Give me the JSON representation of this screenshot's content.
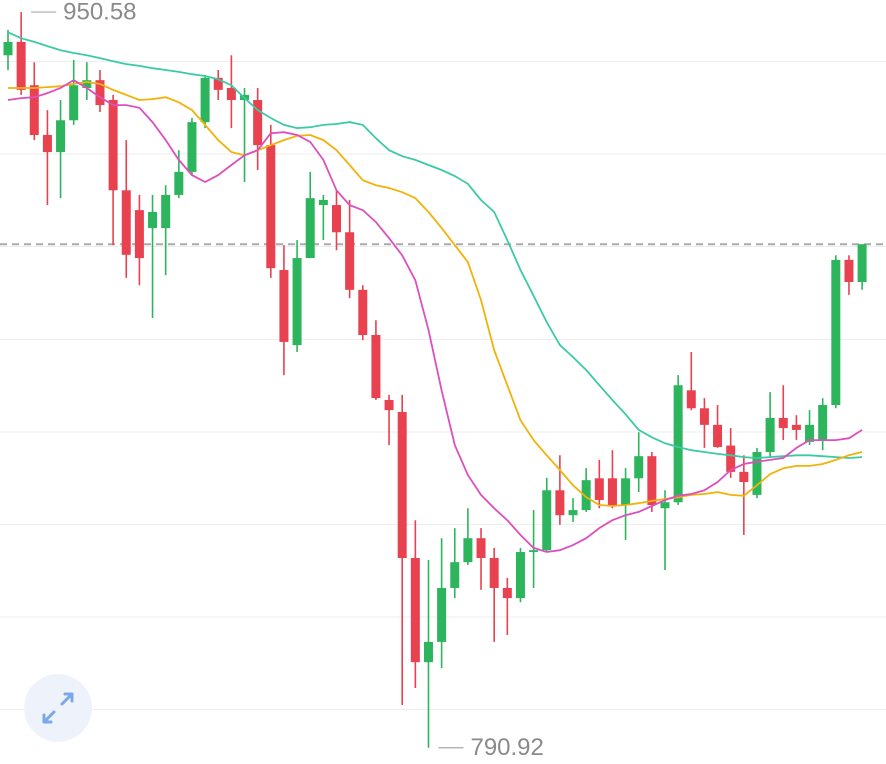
{
  "chart_data": {
    "type": "candlestick",
    "ylim": [
      787.4,
      953.2
    ],
    "up_color": "#2db55d",
    "down_color": "#e8414f",
    "open": [
      941.2,
      944.1,
      934.7,
      923.9,
      920.2,
      927.1,
      934.1,
      935.8,
      931.5,
      911.9,
      907.6,
      903.7,
      903.7,
      910.9,
      915.9,
      926.7,
      936.3,
      934.1,
      931.5,
      931.5,
      921.7,
      894.6,
      878.3,
      897.2,
      908.7,
      908.7,
      902.8,
      890.3,
      880.5,
      866.4,
      863.8,
      832.1,
      809.5,
      813.9,
      825.6,
      831.2,
      836.4,
      832.1,
      825.6,
      823.4,
      833.4,
      833.8,
      846.8,
      841.4,
      842.5,
      849.4,
      849.4,
      843.6,
      849.4,
      854.2,
      842.9,
      844.2,
      868.5,
      864.6,
      861.0,
      856.5,
      850.8,
      845.8,
      855.1,
      862.5,
      861.0,
      857.3,
      857.7,
      865.3,
      896.8,
      892.0
    ],
    "high": [
      946.7,
      950.58,
      939.7,
      929.3,
      931.5,
      940.2,
      939.7,
      938.0,
      932.6,
      922.8,
      910.9,
      910.9,
      913.0,
      920.6,
      927.6,
      936.9,
      938.0,
      941.2,
      934.1,
      934.1,
      926.1,
      900.0,
      901.1,
      915.9,
      910.9,
      911.9,
      909.8,
      891.3,
      883.7,
      867.5,
      867.5,
      840.3,
      831.7,
      836.4,
      838.6,
      842.9,
      838.6,
      834.3,
      827.8,
      834.3,
      842.5,
      849.5,
      854.4,
      845.1,
      851.6,
      853.4,
      855.5,
      851.6,
      859.4,
      855.1,
      846.8,
      871.8,
      876.8,
      866.8,
      865.3,
      860.3,
      854.4,
      856.0,
      868.1,
      869.6,
      863.1,
      864.2,
      866.8,
      897.8,
      897.8,
      900.2
    ],
    "low": [
      938.0,
      932.6,
      922.8,
      908.7,
      910.2,
      926.1,
      931.5,
      928.9,
      900.0,
      892.9,
      891.3,
      884.2,
      893.5,
      910.2,
      915.2,
      925.4,
      931.5,
      925.4,
      913.7,
      916.3,
      892.9,
      871.8,
      876.8,
      897.2,
      901.1,
      898.9,
      888.5,
      879.4,
      866.4,
      856.6,
      800.2,
      803.9,
      790.92,
      808.2,
      823.4,
      830.6,
      825.2,
      813.9,
      815.4,
      822.5,
      825.6,
      833.4,
      839.3,
      839.9,
      842.1,
      842.9,
      842.9,
      836.0,
      846.4,
      842.1,
      829.5,
      843.6,
      864.2,
      856.0,
      856.0,
      849.5,
      837.1,
      845.1,
      853.8,
      857.7,
      857.7,
      856.6,
      855.5,
      864.6,
      889.2,
      890.3
    ],
    "close": [
      944.1,
      933.7,
      923.9,
      920.2,
      927.1,
      934.7,
      935.8,
      930.4,
      911.9,
      897.9,
      897.2,
      907.2,
      910.9,
      915.9,
      926.7,
      936.3,
      933.7,
      931.5,
      932.6,
      921.7,
      895.0,
      879.0,
      897.2,
      910.2,
      909.8,
      902.8,
      890.3,
      880.5,
      866.8,
      864.2,
      832.1,
      809.5,
      813.9,
      825.6,
      831.2,
      836.4,
      832.1,
      825.6,
      823.4,
      833.4,
      833.8,
      846.8,
      841.4,
      842.5,
      849.0,
      844.7,
      843.6,
      849.4,
      854.2,
      843.6,
      844.2,
      869.6,
      864.6,
      861.0,
      856.2,
      850.8,
      848.6,
      855.1,
      862.5,
      860.3,
      859.9,
      861.0,
      865.3,
      896.8,
      892.0,
      900.2
    ],
    "series": [
      {
        "color": "#3ccaa6",
        "values": [
          946.2,
          944.9,
          944.1,
          943.2,
          942.3,
          941.7,
          941.2,
          940.6,
          939.9,
          939.3,
          938.9,
          938.4,
          938.0,
          937.6,
          937.1,
          936.7,
          936.0,
          934.7,
          931.9,
          929.3,
          927.6,
          926.1,
          925.4,
          925.6,
          926.1,
          926.3,
          926.7,
          926.1,
          923.2,
          920.6,
          919.3,
          918.5,
          917.4,
          916.3,
          915.0,
          913.3,
          909.8,
          907.2,
          901.1,
          894.6,
          889.0,
          883.3,
          878.3,
          875.7,
          872.9,
          869.6,
          866.4,
          863.3,
          859.9,
          858.3,
          857.0,
          856.2,
          855.5,
          855.1,
          854.7,
          854.4,
          854.0,
          853.8,
          854.0,
          854.2,
          854.4,
          854.4,
          854.2,
          854.0,
          853.8,
          854.0
        ]
      },
      {
        "color": "#f2b20a",
        "values": [
          934.1,
          934.1,
          934.1,
          934.3,
          934.5,
          935.0,
          935.4,
          935.0,
          933.7,
          932.6,
          931.5,
          931.7,
          932.1,
          931.0,
          929.3,
          926.1,
          922.8,
          920.2,
          919.5,
          920.6,
          921.7,
          922.8,
          923.7,
          923.9,
          922.8,
          920.6,
          917.4,
          914.1,
          913.0,
          912.4,
          911.5,
          910.2,
          907.2,
          903.7,
          900.0,
          896.3,
          888.1,
          877.2,
          869.6,
          862.0,
          857.7,
          854.4,
          851.2,
          847.9,
          845.3,
          843.6,
          843.4,
          843.6,
          844.0,
          844.5,
          844.9,
          845.3,
          845.8,
          846.0,
          846.4,
          845.8,
          845.6,
          847.9,
          850.3,
          851.6,
          852.1,
          852.1,
          852.5,
          853.4,
          854.4,
          855.1
        ]
      },
      {
        "color": "#dd4fbd",
        "values": [
          931.5,
          931.9,
          932.1,
          933.0,
          934.1,
          935.8,
          934.1,
          932.1,
          930.4,
          930.4,
          929.8,
          926.7,
          922.8,
          918.5,
          915.2,
          913.7,
          915.2,
          917.4,
          919.5,
          920.6,
          924.3,
          924.5,
          923.9,
          922.4,
          918.5,
          911.9,
          908.7,
          907.6,
          905.0,
          901.5,
          897.8,
          892.4,
          881.6,
          868.5,
          856.6,
          850.1,
          845.8,
          842.9,
          840.3,
          837.1,
          834.3,
          833.4,
          833.8,
          834.9,
          836.4,
          838.6,
          840.3,
          841.4,
          842.1,
          843.4,
          844.7,
          845.6,
          846.0,
          846.8,
          848.6,
          851.2,
          852.5,
          853.0,
          853.4,
          853.8,
          856.0,
          857.7,
          857.7,
          857.7,
          858.1,
          859.9
        ]
      }
    ],
    "high_label": "950.58",
    "low_label": "790.92",
    "last_price_line": true
  }
}
